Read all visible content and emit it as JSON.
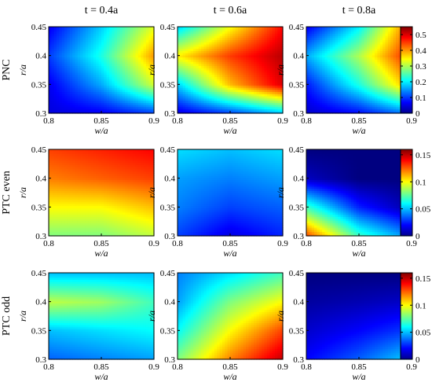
{
  "chart_data": {
    "type": "heatmap",
    "column_titles": [
      "t = 0.4a",
      "t = 0.6a",
      "t = 0.8a"
    ],
    "row_labels": [
      "PNC",
      "PTC even",
      "PTC odd"
    ],
    "xlabel": "w/a",
    "ylabel": "r/a",
    "xlim": [
      0.8,
      0.9
    ],
    "ylim": [
      0.3,
      0.45
    ],
    "xticks": [
      "0.8",
      "0.85",
      "0.9"
    ],
    "yticks": [
      "0.3",
      "0.35",
      "0.4",
      "0.45"
    ],
    "colormap": "jet",
    "colorbars": [
      {
        "row": "PNC",
        "min": 0,
        "max": 0.55,
        "ticks": [
          "0",
          "0.1",
          "0.2",
          "0.3",
          "0.4",
          "0.5"
        ]
      },
      {
        "row": "PTC even",
        "min": 0,
        "max": 0.16,
        "ticks": [
          "0",
          "0.05",
          "0.1",
          "0.15"
        ]
      },
      {
        "row": "PTC odd",
        "min": 0,
        "max": 0.16,
        "ticks": [
          "0",
          "0.05",
          "0.1",
          "0.15"
        ]
      }
    ],
    "panels": [
      {
        "row": "PNC",
        "column": "t = 0.4a",
        "x": [
          0.8,
          0.85,
          0.9
        ],
        "y": [
          0.3,
          0.35,
          0.4,
          0.45
        ],
        "z": [
          [
            0.05,
            0.06,
            0.1
          ],
          [
            0.06,
            0.16,
            0.32
          ],
          [
            0.1,
            0.22,
            0.4
          ],
          [
            0.06,
            0.18,
            0.33
          ]
        ]
      },
      {
        "row": "PNC",
        "column": "t = 0.6a",
        "x": [
          0.8,
          0.85,
          0.9
        ],
        "y": [
          0.3,
          0.35,
          0.4,
          0.45
        ],
        "z": [
          [
            0.05,
            0.1,
            0.17
          ],
          [
            0.18,
            0.38,
            0.5
          ],
          [
            0.35,
            0.45,
            0.52
          ],
          [
            0.18,
            0.34,
            0.48
          ]
        ]
      },
      {
        "row": "PNC",
        "column": "t = 0.8a",
        "x": [
          0.8,
          0.85,
          0.9
        ],
        "y": [
          0.3,
          0.35,
          0.4,
          0.45
        ],
        "z": [
          [
            0.04,
            0.07,
            0.14
          ],
          [
            0.08,
            0.22,
            0.4
          ],
          [
            0.16,
            0.3,
            0.48
          ],
          [
            0.06,
            0.2,
            0.44
          ]
        ]
      },
      {
        "row": "PTC even",
        "column": "t = 0.4a",
        "x": [
          0.8,
          0.85,
          0.9
        ],
        "y": [
          0.3,
          0.35,
          0.4,
          0.45
        ],
        "z": [
          [
            0.08,
            0.08,
            0.09
          ],
          [
            0.1,
            0.1,
            0.11
          ],
          [
            0.12,
            0.125,
            0.13
          ],
          [
            0.13,
            0.135,
            0.14
          ]
        ]
      },
      {
        "row": "PTC even",
        "column": "t = 0.6a",
        "x": [
          0.8,
          0.85,
          0.9
        ],
        "y": [
          0.3,
          0.35,
          0.4,
          0.45
        ],
        "z": [
          [
            0.03,
            0.015,
            0.025
          ],
          [
            0.04,
            0.03,
            0.035
          ],
          [
            0.045,
            0.04,
            0.045
          ],
          [
            0.055,
            0.05,
            0.055
          ]
        ]
      },
      {
        "row": "PTC even",
        "column": "t = 0.8a",
        "x": [
          0.8,
          0.85,
          0.9
        ],
        "y": [
          0.3,
          0.35,
          0.4,
          0.45
        ],
        "z": [
          [
            0.13,
            0.07,
            0.04
          ],
          [
            0.07,
            0.025,
            0.005
          ],
          [
            0.01,
            0.0,
            0.0
          ],
          [
            0.0,
            0.0,
            0.0
          ]
        ]
      },
      {
        "row": "PTC odd",
        "column": "t = 0.4a",
        "x": [
          0.8,
          0.85,
          0.9
        ],
        "y": [
          0.3,
          0.35,
          0.4,
          0.45
        ],
        "z": [
          [
            0.035,
            0.04,
            0.045
          ],
          [
            0.05,
            0.055,
            0.06
          ],
          [
            0.09,
            0.085,
            0.07
          ],
          [
            0.05,
            0.05,
            0.05
          ]
        ]
      },
      {
        "row": "PTC odd",
        "column": "t = 0.6a",
        "x": [
          0.8,
          0.85,
          0.9
        ],
        "y": [
          0.3,
          0.35,
          0.4,
          0.45
        ],
        "z": [
          [
            0.08,
            0.12,
            0.15
          ],
          [
            0.06,
            0.1,
            0.13
          ],
          [
            0.045,
            0.08,
            0.1
          ],
          [
            0.04,
            0.055,
            0.07
          ]
        ]
      },
      {
        "row": "PTC odd",
        "column": "t = 0.8a",
        "x": [
          0.8,
          0.85,
          0.9
        ],
        "y": [
          0.3,
          0.35,
          0.4,
          0.45
        ],
        "z": [
          [
            0.02,
            0.035,
            0.055
          ],
          [
            0.012,
            0.02,
            0.03
          ],
          [
            0.005,
            0.008,
            0.012
          ],
          [
            0.0,
            0.0,
            0.0
          ]
        ]
      }
    ]
  }
}
